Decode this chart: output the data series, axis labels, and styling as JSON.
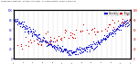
{
  "title": "Milwaukee Weather  Outdoor Humidity",
  "subtitle": "vs Temperature",
  "subtitle2": "Every 5 Minutes",
  "background_color": "#ffffff",
  "plot_bg": "#ffffff",
  "blue_color": "#0000cc",
  "red_color": "#cc0000",
  "legend_blue_label": "Humidity",
  "legend_red_label": "Temp",
  "ylim_left": [
    0,
    100
  ],
  "ylim_right": [
    0,
    100
  ],
  "num_points": 288,
  "grid_color": "#aaaaaa",
  "dot_size": 0.8
}
